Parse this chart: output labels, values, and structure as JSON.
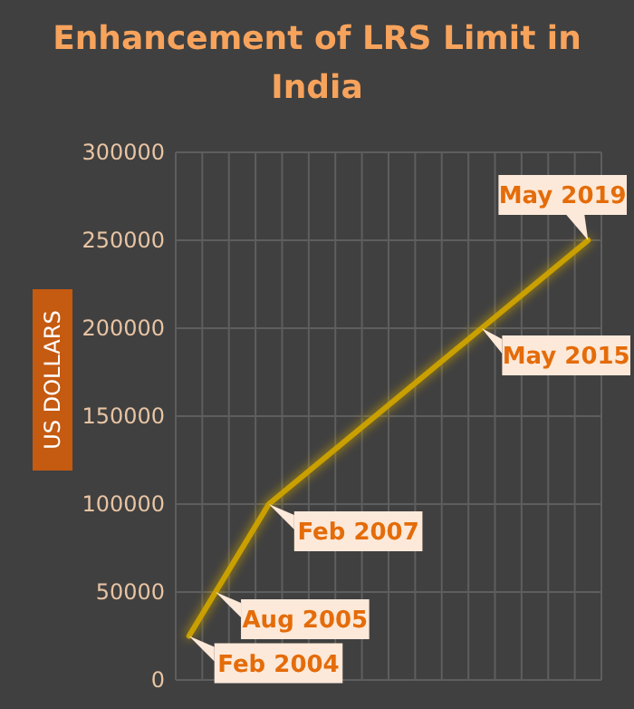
{
  "chart_data": {
    "type": "line",
    "title": "Enhancement of LRS Limit in India",
    "ylabel": "US DOLLARS",
    "categories": [
      null,
      null,
      null,
      null,
      null,
      null,
      null,
      null,
      null,
      null,
      null,
      null,
      null,
      null,
      null,
      null
    ],
    "series": [
      {
        "color": "#c9a000",
        "values": [
          25000,
          50000,
          null,
          100000,
          null,
          null,
          null,
          null,
          null,
          null,
          null,
          200000,
          null,
          null,
          null,
          250000
        ]
      }
    ],
    "ylim": [
      0,
      300000
    ],
    "yticks": [
      0,
      50000,
      100000,
      150000,
      200000,
      250000,
      300000
    ],
    "grid": true,
    "marker": "none",
    "line_style": "solid",
    "annotations": [
      "Feb 2004",
      "Aug 2005",
      "Feb 2007",
      "May 2015",
      "May 2019"
    ]
  }
}
